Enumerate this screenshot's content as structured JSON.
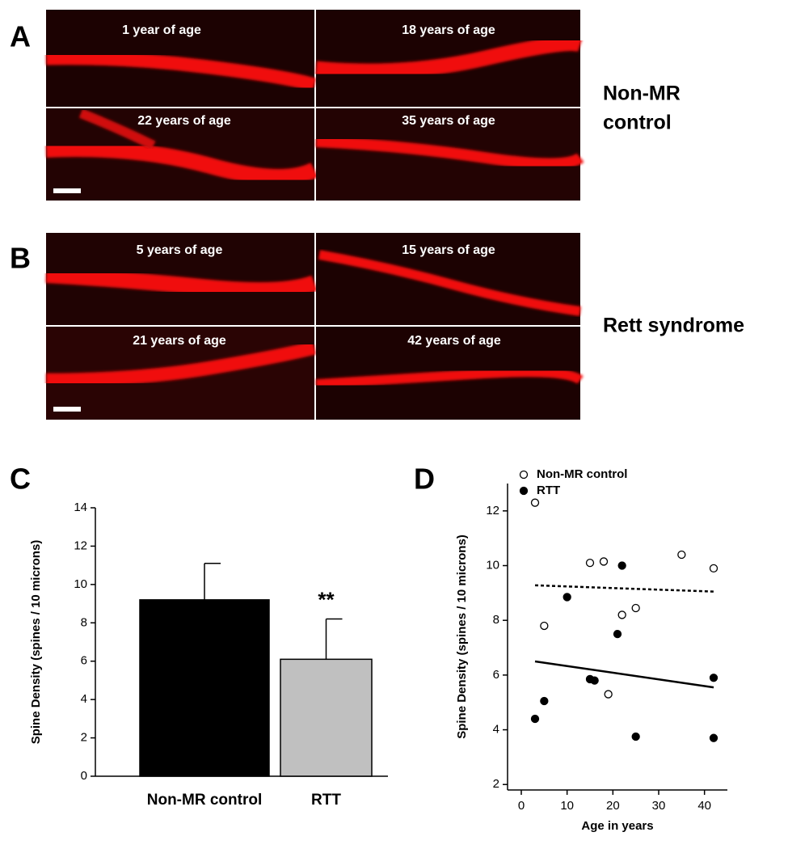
{
  "panel_a": {
    "letter": "A",
    "side_label_line1": "Non-MR",
    "side_label_line2": "control",
    "images": [
      "1 year of age",
      "18 years of age",
      "22 years of age",
      "35 years of age"
    ]
  },
  "panel_b": {
    "letter": "B",
    "side_label": "Rett syndrome",
    "images": [
      "5 years of age",
      "15 years of age",
      "21 years of age",
      "42 years of age"
    ]
  },
  "chart_data": [
    {
      "type": "bar",
      "panel": "C",
      "ylabel": "Spine Density (spines / 10 microns)",
      "categories": [
        "Non-MR control",
        "RTT"
      ],
      "values": [
        9.2,
        6.1
      ],
      "errors": [
        1.9,
        2.1
      ],
      "colors": [
        "#000000",
        "#c0c0c0"
      ],
      "annotations": [
        null,
        "**"
      ],
      "ylim": [
        0,
        14
      ],
      "yticks": [
        0,
        2,
        4,
        6,
        8,
        10,
        12,
        14
      ]
    },
    {
      "type": "scatter",
      "panel": "D",
      "xlabel": "Age in years",
      "ylabel": "Spine Density (spines / 10 microns)",
      "xlim": [
        -3,
        45
      ],
      "xticks": [
        0,
        10,
        20,
        30,
        40
      ],
      "ylim": [
        1.8,
        13
      ],
      "yticks": [
        2,
        4,
        6,
        8,
        10,
        12
      ],
      "series": [
        {
          "name": "Non-MR control",
          "color": "#ffffff",
          "x": [
            3,
            5,
            15,
            18,
            19,
            22,
            25,
            35,
            42
          ],
          "values": [
            12.3,
            7.8,
            10.1,
            10.15,
            5.3,
            8.2,
            8.45,
            10.4,
            9.9
          ],
          "trend": {
            "style": "dashed",
            "x": [
              3,
              42
            ],
            "values": [
              9.28,
              9.05
            ]
          }
        },
        {
          "name": "RTT",
          "color": "#000000",
          "x": [
            3,
            5,
            10,
            15,
            16,
            21,
            22,
            25,
            42,
            42
          ],
          "values": [
            4.4,
            5.05,
            8.85,
            5.85,
            5.8,
            7.5,
            10,
            3.75,
            5.9,
            3.7
          ],
          "trend": {
            "style": "solid",
            "x": [
              3,
              42
            ],
            "values": [
              6.5,
              5.55
            ]
          }
        }
      ]
    }
  ]
}
